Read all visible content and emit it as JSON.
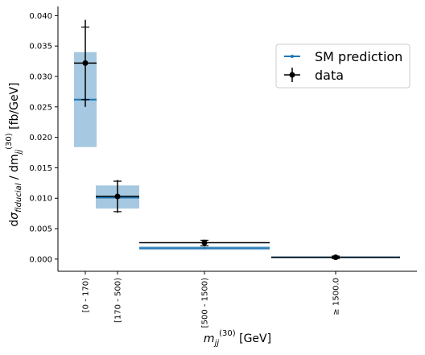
{
  "chart_data": {
    "type": "scatter",
    "x_axis": {
      "label_main": "m",
      "label_sub": "jj",
      "label_sup": "(30)",
      "label_unit": " [GeV]",
      "tick_labels": [
        "[0 - 170)",
        "[170 - 500)",
        "[500 - 1500)",
        "≥ 1500.0"
      ]
    },
    "y_axis": {
      "label_d": "d",
      "label_sigma": "σ",
      "label_sigma_sub": "fiducial",
      "label_mid": " / dm",
      "label_m_sub": "jj",
      "label_m_sup": "(30)",
      "label_unit": "  [fb/GeV]",
      "ylim": [
        -0.002,
        0.0415
      ],
      "ticks": [
        0.0,
        0.005,
        0.01,
        0.015,
        0.02,
        0.025,
        0.03,
        0.035,
        0.04
      ],
      "tick_labels": [
        "0.000",
        "0.005",
        "0.010",
        "0.015",
        "0.020",
        "0.025",
        "0.030",
        "0.035",
        "0.040"
      ]
    },
    "legend": {
      "placement": "upper right",
      "entries": [
        {
          "key": "sm",
          "label": "SM prediction",
          "color": "#1f77b4"
        },
        {
          "key": "data",
          "label": "data",
          "color": "#000000"
        }
      ]
    },
    "sm_prediction": {
      "color": "#1f77b4",
      "band_color": "#a6c8e0",
      "bins": [
        {
          "value": 0.0262,
          "band_low": 0.0184,
          "band_high": 0.034
        },
        {
          "value": 0.0101,
          "band_low": 0.0083,
          "band_high": 0.0121
        },
        {
          "value": 0.0018,
          "band_low": 0.0015,
          "band_high": 0.0021
        },
        {
          "value": 0.0003,
          "band_low": 0.0002,
          "band_high": 0.0004
        }
      ]
    },
    "data": {
      "color": "#000000",
      "bins": [
        {
          "value": 0.0322,
          "err_low": 0.025,
          "err_high": 0.0393,
          "cap_low": 0.0262,
          "cap_high": 0.0381
        },
        {
          "value": 0.0103,
          "err_low": 0.0076,
          "err_high": 0.013,
          "cap_low": 0.0078,
          "cap_high": 0.0128
        },
        {
          "value": 0.0027,
          "err_low": 0.0021,
          "err_high": 0.0032,
          "cap_low": 0.0022,
          "cap_high": 0.0031
        },
        {
          "value": 0.0003,
          "err_low": 0.0,
          "err_high": 0.0006,
          "cap_low": 0.0001,
          "cap_high": 0.0005
        }
      ]
    }
  }
}
